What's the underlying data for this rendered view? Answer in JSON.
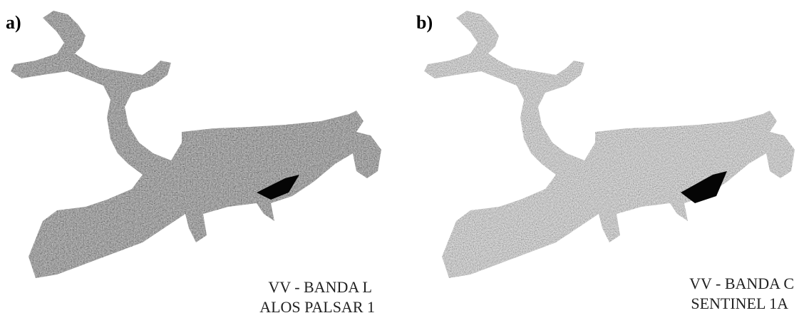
{
  "panels": [
    {
      "label": "a)",
      "caption": [
        "VV - BANDA L",
        "ALOS PALSAR 1"
      ]
    },
    {
      "label": "b)",
      "caption": [
        "VV - BANDA C",
        "SENTINEL 1A"
      ]
    }
  ]
}
